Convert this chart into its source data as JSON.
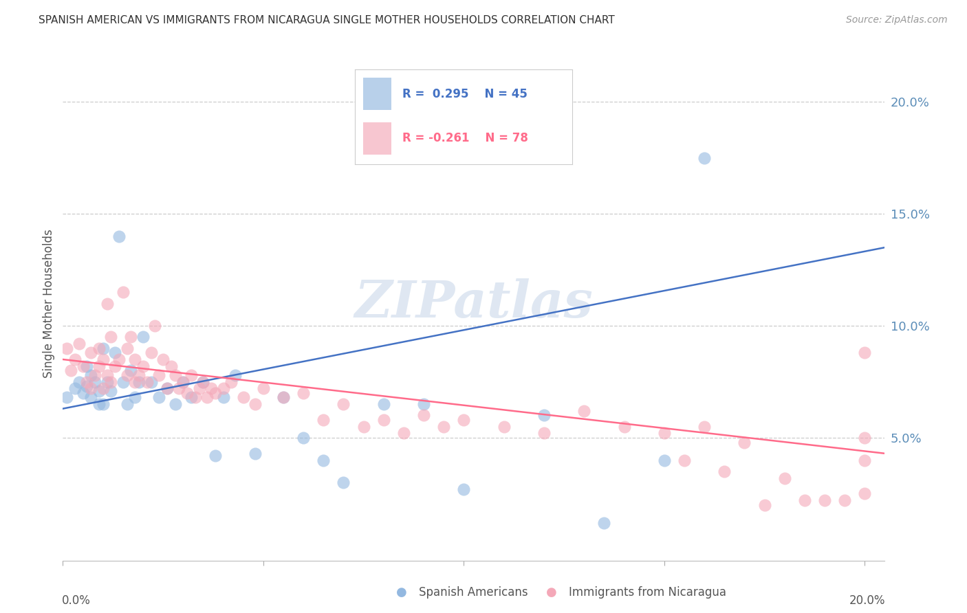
{
  "title": "SPANISH AMERICAN VS IMMIGRANTS FROM NICARAGUA SINGLE MOTHER HOUSEHOLDS CORRELATION CHART",
  "source": "Source: ZipAtlas.com",
  "ylabel": "Single Mother Households",
  "ytick_vals": [
    0.05,
    0.1,
    0.15,
    0.2
  ],
  "ytick_labels": [
    "5.0%",
    "10.0%",
    "15.0%",
    "20.0%"
  ],
  "xlim": [
    0,
    0.205
  ],
  "ylim": [
    -0.005,
    0.225
  ],
  "blue_color": "#93B8E0",
  "pink_color": "#F4A8B8",
  "line_blue_color": "#4472C4",
  "line_pink_color": "#FF6B8A",
  "watermark_color": "#C5D5E8",
  "blue_line_y_start": 0.063,
  "blue_line_y_end": 0.135,
  "pink_line_y_start": 0.085,
  "pink_line_y_end": 0.043,
  "blue_x": [
    0.001,
    0.003,
    0.004,
    0.005,
    0.006,
    0.006,
    0.007,
    0.007,
    0.008,
    0.009,
    0.009,
    0.01,
    0.01,
    0.011,
    0.012,
    0.013,
    0.014,
    0.015,
    0.016,
    0.017,
    0.018,
    0.019,
    0.02,
    0.022,
    0.024,
    0.026,
    0.028,
    0.03,
    0.032,
    0.035,
    0.038,
    0.04,
    0.043,
    0.048,
    0.055,
    0.06,
    0.065,
    0.07,
    0.08,
    0.09,
    0.1,
    0.12,
    0.135,
    0.15,
    0.16
  ],
  "blue_y": [
    0.068,
    0.072,
    0.075,
    0.07,
    0.082,
    0.073,
    0.068,
    0.078,
    0.075,
    0.071,
    0.065,
    0.09,
    0.065,
    0.075,
    0.071,
    0.088,
    0.14,
    0.075,
    0.065,
    0.08,
    0.068,
    0.075,
    0.095,
    0.075,
    0.068,
    0.072,
    0.065,
    0.075,
    0.068,
    0.075,
    0.042,
    0.068,
    0.078,
    0.043,
    0.068,
    0.05,
    0.04,
    0.03,
    0.065,
    0.065,
    0.027,
    0.06,
    0.012,
    0.04,
    0.175
  ],
  "pink_x": [
    0.001,
    0.002,
    0.003,
    0.004,
    0.005,
    0.006,
    0.007,
    0.007,
    0.008,
    0.009,
    0.009,
    0.01,
    0.01,
    0.011,
    0.011,
    0.012,
    0.012,
    0.013,
    0.014,
    0.015,
    0.016,
    0.016,
    0.017,
    0.018,
    0.018,
    0.019,
    0.02,
    0.021,
    0.022,
    0.023,
    0.024,
    0.025,
    0.026,
    0.027,
    0.028,
    0.029,
    0.03,
    0.031,
    0.032,
    0.033,
    0.034,
    0.035,
    0.036,
    0.037,
    0.038,
    0.04,
    0.042,
    0.045,
    0.048,
    0.05,
    0.055,
    0.06,
    0.065,
    0.07,
    0.075,
    0.08,
    0.085,
    0.09,
    0.095,
    0.1,
    0.11,
    0.12,
    0.13,
    0.14,
    0.15,
    0.155,
    0.16,
    0.165,
    0.17,
    0.175,
    0.18,
    0.185,
    0.19,
    0.195,
    0.2,
    0.2,
    0.2,
    0.2
  ],
  "pink_y": [
    0.09,
    0.08,
    0.085,
    0.092,
    0.082,
    0.075,
    0.088,
    0.072,
    0.078,
    0.082,
    0.09,
    0.085,
    0.072,
    0.11,
    0.078,
    0.095,
    0.075,
    0.082,
    0.085,
    0.115,
    0.09,
    0.078,
    0.095,
    0.075,
    0.085,
    0.078,
    0.082,
    0.075,
    0.088,
    0.1,
    0.078,
    0.085,
    0.072,
    0.082,
    0.078,
    0.072,
    0.075,
    0.07,
    0.078,
    0.068,
    0.072,
    0.075,
    0.068,
    0.072,
    0.07,
    0.072,
    0.075,
    0.068,
    0.065,
    0.072,
    0.068,
    0.07,
    0.058,
    0.065,
    0.055,
    0.058,
    0.052,
    0.06,
    0.055,
    0.058,
    0.055,
    0.052,
    0.062,
    0.055,
    0.052,
    0.04,
    0.055,
    0.035,
    0.048,
    0.02,
    0.032,
    0.022,
    0.022,
    0.022,
    0.088,
    0.04,
    0.05,
    0.025
  ]
}
